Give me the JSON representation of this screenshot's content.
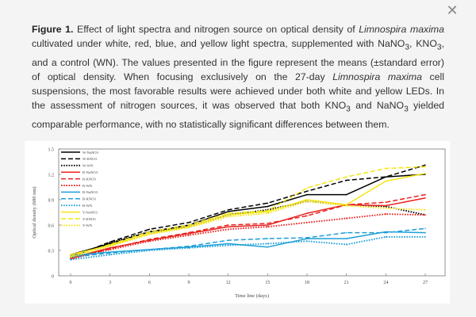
{
  "modal": {
    "close_label": "✕",
    "caption": {
      "label": "Figure 1.",
      "seg1": " Effect of light spectra and nitrogen source on optical density of ",
      "species1": "Limnospira maxima",
      "seg2": " cultivated under white, red, blue, and yellow light spectra, supplemented with NaNO",
      "sub1": "3",
      "seg3": ", KNO",
      "sub2": "3",
      "seg4": ", and a control (WN). The values presented in the figure represent the means (±standard error) of optical density. When focusing exclusively on the 27-day ",
      "species2": "Limnospira maxima",
      "seg5": " cell suspensions, the most favorable results were achieved under both white and yellow LEDs. In the assessment of nitrogen sources, it was observed that both KNO",
      "sub3": "3",
      "seg6": " and NaNO",
      "sub4": "3",
      "seg7": " yielded comparable performance, with no statistically significant differences between them."
    }
  },
  "chart_data": {
    "type": "line",
    "xlabel": "Time line (days)",
    "ylabel": "Optical density (680 nm)",
    "x": [
      0,
      3,
      6,
      9,
      12,
      15,
      18,
      21,
      24,
      27
    ],
    "xticks": [
      "0",
      "3",
      "6",
      "9",
      "12",
      "15",
      "18",
      "21",
      "24",
      "27"
    ],
    "yticks": [
      "0",
      "0.3",
      "0.6",
      "0.9",
      "1.2",
      "1.5"
    ],
    "ylim": [
      0,
      1.5
    ],
    "legend_position": "top-left",
    "series": [
      {
        "name": "W-NaNO3",
        "color": "#000000",
        "dash": "solid",
        "values": [
          0.25,
          0.38,
          0.52,
          0.6,
          0.76,
          0.82,
          0.96,
          0.96,
          1.17,
          1.2
        ]
      },
      {
        "name": "W-KNO3",
        "color": "#000000",
        "dash": "dashed",
        "values": [
          0.22,
          0.4,
          0.55,
          0.63,
          0.78,
          0.86,
          1.0,
          1.13,
          1.17,
          1.31
        ]
      },
      {
        "name": "W-WN",
        "color": "#000000",
        "dash": "dotted",
        "values": [
          0.23,
          0.39,
          0.52,
          0.58,
          0.72,
          0.78,
          0.88,
          0.84,
          0.82,
          0.72
        ]
      },
      {
        "name": "R-NaNO3",
        "color": "#e8231f",
        "dash": "solid",
        "values": [
          0.21,
          0.33,
          0.42,
          0.5,
          0.58,
          0.6,
          0.74,
          0.84,
          0.83,
          0.92
        ]
      },
      {
        "name": "R-KNO3",
        "color": "#e8231f",
        "dash": "dashed",
        "values": [
          0.2,
          0.32,
          0.43,
          0.51,
          0.6,
          0.62,
          0.71,
          0.84,
          0.87,
          0.96
        ]
      },
      {
        "name": "R-WN",
        "color": "#e8231f",
        "dash": "dotted",
        "values": [
          0.2,
          0.31,
          0.41,
          0.48,
          0.55,
          0.58,
          0.63,
          0.68,
          0.73,
          0.72
        ]
      },
      {
        "name": "B-NaNO3",
        "color": "#1e9fd8",
        "dash": "solid",
        "values": [
          0.24,
          0.28,
          0.31,
          0.34,
          0.38,
          0.34,
          0.44,
          0.44,
          0.52,
          0.51
        ]
      },
      {
        "name": "B-KNO3",
        "color": "#1e9fd8",
        "dash": "dashed",
        "values": [
          0.22,
          0.27,
          0.31,
          0.35,
          0.42,
          0.44,
          0.45,
          0.51,
          0.51,
          0.56
        ]
      },
      {
        "name": "B-WN",
        "color": "#1e9fd8",
        "dash": "dotted",
        "values": [
          0.19,
          0.25,
          0.3,
          0.33,
          0.36,
          0.38,
          0.41,
          0.37,
          0.46,
          0.46
        ]
      },
      {
        "name": "Y-NaNO3",
        "color": "#f4e512",
        "dash": "solid",
        "values": [
          0.25,
          0.36,
          0.5,
          0.58,
          0.72,
          0.76,
          0.9,
          0.84,
          1.12,
          1.21
        ]
      },
      {
        "name": "Y-KNO3",
        "color": "#f4e512",
        "dash": "dashed",
        "values": [
          0.23,
          0.37,
          0.52,
          0.6,
          0.74,
          0.77,
          1.04,
          1.17,
          1.27,
          1.29
        ]
      },
      {
        "name": "Y-WN",
        "color": "#f4e512",
        "dash": "dotted",
        "values": [
          0.22,
          0.35,
          0.49,
          0.57,
          0.7,
          0.74,
          0.88,
          0.83,
          0.8,
          0.78
        ]
      }
    ]
  }
}
